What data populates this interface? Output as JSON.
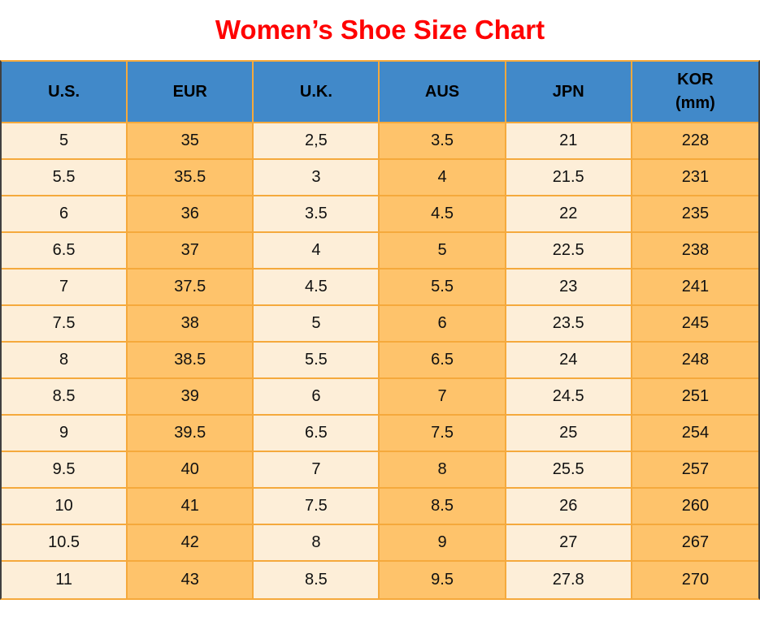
{
  "title": {
    "text": "Women’s Shoe Size Chart",
    "color": "#FF0000"
  },
  "chart_data": {
    "type": "table",
    "title": "Women’s Shoe Size Chart",
    "columns": [
      {
        "label": "U.S.",
        "sublabel": ""
      },
      {
        "label": "EUR",
        "sublabel": ""
      },
      {
        "label": "U.K.",
        "sublabel": ""
      },
      {
        "label": "AUS",
        "sublabel": ""
      },
      {
        "label": "JPN",
        "sublabel": ""
      },
      {
        "label": "KOR",
        "sublabel": "(mm)"
      }
    ],
    "rows": [
      [
        "5",
        "35",
        "2,5",
        "3.5",
        "21",
        "228"
      ],
      [
        "5.5",
        "35.5",
        "3",
        "4",
        "21.5",
        "231"
      ],
      [
        "6",
        "36",
        "3.5",
        "4.5",
        "22",
        "235"
      ],
      [
        "6.5",
        "37",
        "4",
        "5",
        "22.5",
        "238"
      ],
      [
        "7",
        "37.5",
        "4.5",
        "5.5",
        "23",
        "241"
      ],
      [
        "7.5",
        "38",
        "5",
        "6",
        "23.5",
        "245"
      ],
      [
        "8",
        "38.5",
        "5.5",
        "6.5",
        "24",
        "248"
      ],
      [
        "8.5",
        "39",
        "6",
        "7",
        "24.5",
        "251"
      ],
      [
        "9",
        "39.5",
        "6.5",
        "7.5",
        "25",
        "254"
      ],
      [
        "9.5",
        "40",
        "7",
        "8",
        "25.5",
        "257"
      ],
      [
        "10",
        "41",
        "7.5",
        "8.5",
        "26",
        "260"
      ],
      [
        "10.5",
        "42",
        "8",
        "9",
        "27",
        "267"
      ],
      [
        "11",
        "43",
        "8.5",
        "9.5",
        "27.8",
        "270"
      ]
    ],
    "column_shading": [
      "light",
      "orange",
      "light",
      "orange",
      "light",
      "orange"
    ]
  },
  "colors": {
    "header_bg": "#4189C9",
    "cell_light": "#FDEED8",
    "cell_orange": "#FEC36B",
    "grid": "#F5A93C",
    "outer_side_border": "#404040",
    "title": "#FF0000",
    "text": "#111111",
    "page_bg": "#FFFFFF"
  }
}
